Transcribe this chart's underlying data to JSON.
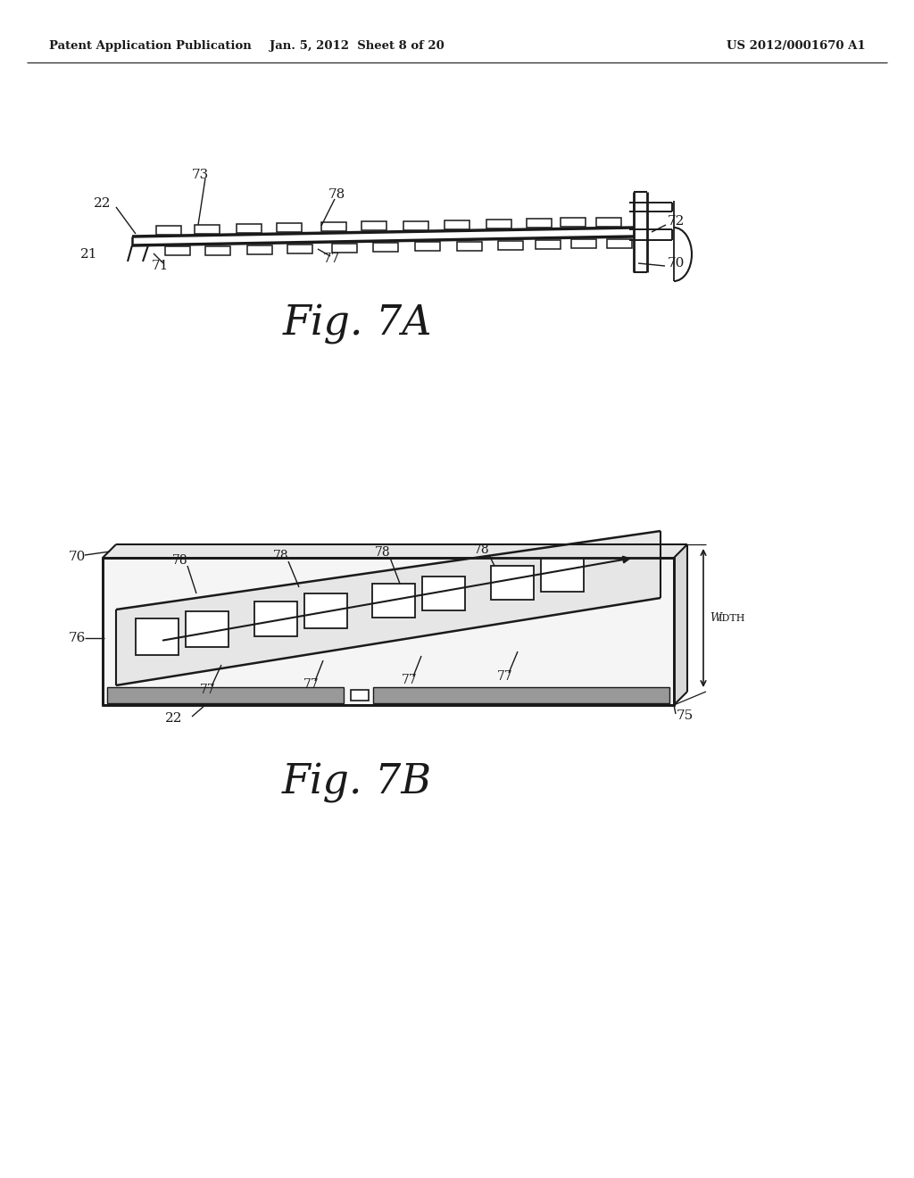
{
  "bg_color": "#ffffff",
  "text_color": "#1a1a1a",
  "line_color": "#1a1a1a",
  "header_left": "Patent Application Publication",
  "header_center": "Jan. 5, 2012  Sheet 8 of 20",
  "header_right": "US 2012/0001670 A1",
  "fig7a_label": "Fig. 7A",
  "fig7b_label": "Fig. 7B"
}
